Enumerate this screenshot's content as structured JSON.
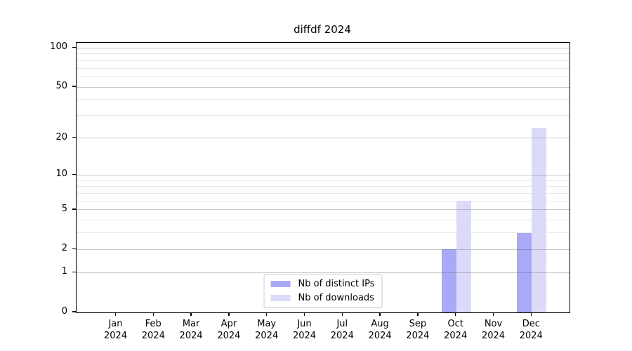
{
  "chart_data": {
    "type": "bar",
    "title": "diffdf 2024",
    "categories": [
      "Jan",
      "Feb",
      "Mar",
      "Apr",
      "May",
      "Jun",
      "Jul",
      "Aug",
      "Sep",
      "Oct",
      "Nov",
      "Dec"
    ],
    "x_tick_year": "2024",
    "series": [
      {
        "name": "Nb of distinct IPs",
        "color": "#a9a9f7",
        "values": [
          0,
          0,
          0,
          0,
          0,
          0,
          0,
          0,
          0,
          2,
          0,
          3
        ]
      },
      {
        "name": "Nb of downloads",
        "color": "#dbdbf9",
        "values": [
          0,
          0,
          0,
          0,
          0,
          0,
          0,
          0,
          0,
          6,
          0,
          24
        ]
      }
    ],
    "yaxis": {
      "scale": "log1p",
      "major_ticks": [
        0,
        1,
        2,
        5,
        10,
        20,
        50,
        100
      ],
      "minor_ticks": [
        3,
        4,
        6,
        7,
        8,
        9,
        30,
        40,
        60,
        70,
        80,
        90
      ],
      "range": [
        0,
        110
      ]
    },
    "xlabel": "",
    "ylabel": "",
    "grid": true,
    "legend_position": "lower center",
    "colors": {
      "grid_major": "#c8c8c8",
      "grid_minor": "#e4e4e4",
      "axis": "#000000",
      "background": "#ffffff"
    }
  }
}
